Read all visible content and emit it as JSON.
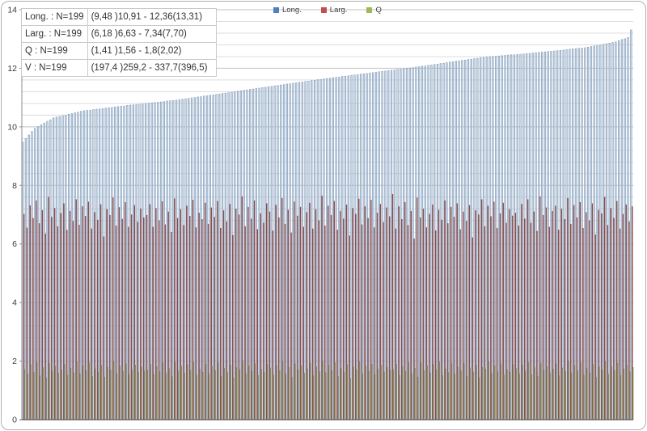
{
  "stats_table": {
    "rows": [
      {
        "name": "Long. : N=199",
        "range": "(9,48 )10,91 - 12,36(13,31)"
      },
      {
        "name": "Larg. : N=199",
        "range": "(6,18 )6,63 - 7,34(7,70)"
      },
      {
        "name": "Q : N=199",
        "range": "(1,41 )1,56 - 1,8(2,02)"
      },
      {
        "name": "V : N=199",
        "range": "(197,4 )259,2 - 337,7(396,5)"
      }
    ]
  },
  "legend": {
    "items": [
      {
        "label": "Long.",
        "color": "#4F81BD"
      },
      {
        "label": "Larg.",
        "color": "#C0504D"
      },
      {
        "label": "Q",
        "color": "#9BBB59"
      }
    ]
  },
  "colors": {
    "grid_minor": "#dcdcdc",
    "grid_major": "#c2c2c2",
    "y_axis": "#8c8c8c",
    "x_axis": "#595959",
    "tick_text": "#3a3a3a",
    "frame_border": "#b0b0b0"
  },
  "chart_data": {
    "type": "bar",
    "title": "",
    "xlabel": "",
    "ylabel": "",
    "n_categories": 199,
    "ylim": [
      0,
      14
    ],
    "ytick_interval": 2,
    "minor_grid_interval": 0.4,
    "grid": true,
    "legend_position": "top",
    "yticks": [
      "0",
      "2",
      "4",
      "6",
      "8",
      "10",
      "12",
      "14"
    ],
    "series": [
      {
        "name": "Long.",
        "sorted": "ascending",
        "summary": "min 9.48, Q1 10.91, Q3 12.36, max 13.31, N=199",
        "fill": "#ccd9e8",
        "edge": "#7d98b6",
        "values": [
          9.48,
          9.6,
          9.72,
          9.84,
          9.95,
          10.01,
          10.07,
          10.13,
          10.19,
          10.24,
          10.3,
          10.33,
          10.35,
          10.38,
          10.4,
          10.43,
          10.45,
          10.48,
          10.5,
          10.53,
          10.55,
          10.56,
          10.57,
          10.59,
          10.6,
          10.61,
          10.62,
          10.64,
          10.65,
          10.66,
          10.68,
          10.69,
          10.7,
          10.71,
          10.73,
          10.74,
          10.75,
          10.76,
          10.77,
          10.78,
          10.8,
          10.81,
          10.82,
          10.83,
          10.84,
          10.85,
          10.86,
          10.88,
          10.89,
          10.9,
          10.91,
          10.93,
          10.94,
          10.96,
          10.97,
          10.99,
          11.0,
          11.02,
          11.03,
          11.05,
          11.06,
          11.08,
          11.09,
          11.11,
          11.12,
          11.14,
          11.15,
          11.17,
          11.18,
          11.2,
          11.22,
          11.23,
          11.25,
          11.26,
          11.28,
          11.29,
          11.31,
          11.32,
          11.34,
          11.35,
          11.37,
          11.38,
          11.4,
          11.41,
          11.43,
          11.44,
          11.46,
          11.47,
          11.49,
          11.5,
          11.52,
          11.53,
          11.55,
          11.56,
          11.58,
          11.59,
          11.61,
          11.62,
          11.64,
          11.65,
          11.66,
          11.68,
          11.69,
          11.7,
          11.72,
          11.73,
          11.74,
          11.76,
          11.77,
          11.78,
          11.8,
          11.81,
          11.82,
          11.84,
          11.85,
          11.86,
          11.88,
          11.89,
          11.9,
          11.92,
          11.93,
          11.94,
          11.96,
          11.97,
          11.98,
          12.0,
          12.01,
          12.02,
          12.04,
          12.05,
          12.07,
          12.08,
          12.1,
          12.11,
          12.13,
          12.14,
          12.16,
          12.17,
          12.19,
          12.21,
          12.22,
          12.24,
          12.25,
          12.27,
          12.28,
          12.3,
          12.31,
          12.33,
          12.34,
          12.36,
          12.37,
          12.38,
          12.39,
          12.4,
          12.41,
          12.42,
          12.43,
          12.44,
          12.45,
          12.46,
          12.46,
          12.47,
          12.48,
          12.49,
          12.5,
          12.51,
          12.52,
          12.53,
          12.54,
          12.55,
          12.56,
          12.57,
          12.58,
          12.59,
          12.6,
          12.61,
          12.62,
          12.64,
          12.65,
          12.66,
          12.67,
          12.68,
          12.69,
          12.7,
          12.72,
          12.74,
          12.76,
          12.78,
          12.8,
          12.82,
          12.84,
          12.86,
          12.88,
          12.9,
          12.94,
          12.98,
          13.01,
          13.05,
          13.31
        ]
      },
      {
        "name": "Larg.",
        "sorted": "none",
        "summary": "min 6.18, Q1 6.63, Q3 7.34, max 7.70, N=199",
        "fill": "#9c4f4c",
        "edge": "#7a3a38",
        "values": [
          7.02,
          6.55,
          7.31,
          6.88,
          7.48,
          6.7,
          7.15,
          6.35,
          7.6,
          6.92,
          7.22,
          6.6,
          7.05,
          7.38,
          6.48,
          7.12,
          6.78,
          7.52,
          6.65,
          7.28,
          6.95,
          7.44,
          6.52,
          7.08,
          6.82,
          7.35,
          6.25,
          7.18,
          6.98,
          7.58,
          6.62,
          7.25,
          6.85,
          7.42,
          6.58,
          7.0,
          7.32,
          6.75,
          7.2,
          6.9,
          6.98,
          7.35,
          6.58,
          7.22,
          6.8,
          7.45,
          6.66,
          7.1,
          6.4,
          7.55,
          6.88,
          7.18,
          6.64,
          7.3,
          6.95,
          7.5,
          6.56,
          7.06,
          6.84,
          7.4,
          6.68,
          7.24,
          6.92,
          7.46,
          6.54,
          7.14,
          6.76,
          7.36,
          6.3,
          7.2,
          7.0,
          7.62,
          6.6,
          7.26,
          6.86,
          7.48,
          6.5,
          7.04,
          6.72,
          7.38,
          7.1,
          6.45,
          7.33,
          6.9,
          7.56,
          6.68,
          7.16,
          6.38,
          7.44,
          6.96,
          7.26,
          6.58,
          7.08,
          7.4,
          6.52,
          7.18,
          6.8,
          7.64,
          6.62,
          7.3,
          6.98,
          7.46,
          6.48,
          7.12,
          6.86,
          7.34,
          6.28,
          7.22,
          7.02,
          7.54,
          6.66,
          7.28,
          6.88,
          7.5,
          6.56,
          7.06,
          7.36,
          6.74,
          7.24,
          6.94,
          7.7,
          6.52,
          7.28,
          6.84,
          7.42,
          6.64,
          7.12,
          6.18,
          7.58,
          6.9,
          7.2,
          6.56,
          7.02,
          7.34,
          6.46,
          7.16,
          6.82,
          7.48,
          6.7,
          7.26,
          6.92,
          7.38,
          6.5,
          7.1,
          6.78,
          7.32,
          6.22,
          7.14,
          7.0,
          7.52,
          6.6,
          7.3,
          6.94,
          7.44,
          6.54,
          7.04,
          7.4,
          6.72,
          7.18,
          6.96,
          7.06,
          6.62,
          7.36,
          6.86,
          7.52,
          6.72,
          7.1,
          6.44,
          7.62,
          6.98,
          7.24,
          6.58,
          7.12,
          7.3,
          6.48,
          7.2,
          6.84,
          7.56,
          6.68,
          7.32,
          6.9,
          7.42,
          6.54,
          7.08,
          6.8,
          7.38,
          6.32,
          7.16,
          7.04,
          7.6,
          6.64,
          7.22,
          6.88,
          7.46,
          6.52,
          7.02,
          7.34,
          6.76,
          7.28
        ]
      },
      {
        "name": "Q",
        "sorted": "none",
        "summary": "min 1.41, Q1 1.56, Q3 1.80, max 2.02, N=199",
        "fill": "#a39e68",
        "edge": "#7d7a45",
        "values": [
          1.72,
          1.55,
          1.88,
          1.62,
          1.95,
          1.5,
          1.78,
          1.44,
          1.92,
          1.66,
          1.82,
          1.58,
          1.7,
          1.9,
          1.52,
          1.76,
          1.6,
          1.98,
          1.56,
          1.84,
          1.68,
          1.94,
          1.48,
          1.74,
          1.63,
          1.86,
          1.46,
          1.79,
          1.69,
          2.0,
          1.57,
          1.83,
          1.65,
          1.91,
          1.53,
          1.71,
          1.87,
          1.61,
          1.8,
          1.67,
          1.7,
          1.89,
          1.54,
          1.81,
          1.64,
          1.93,
          1.58,
          1.75,
          1.47,
          1.97,
          1.66,
          1.83,
          1.59,
          1.88,
          1.69,
          1.96,
          1.52,
          1.73,
          1.62,
          1.9,
          1.56,
          1.82,
          1.68,
          1.94,
          1.49,
          1.76,
          1.61,
          1.87,
          1.43,
          1.78,
          1.71,
          2.02,
          1.57,
          1.84,
          1.65,
          1.92,
          1.51,
          1.72,
          1.63,
          1.89,
          1.77,
          1.53,
          1.85,
          1.67,
          1.99,
          1.55,
          1.79,
          1.45,
          1.91,
          1.7,
          1.84,
          1.58,
          1.74,
          1.93,
          1.5,
          1.8,
          1.64,
          2.01,
          1.6,
          1.86,
          1.68,
          1.95,
          1.48,
          1.75,
          1.62,
          1.88,
          1.41,
          1.81,
          1.71,
          1.98,
          1.56,
          1.83,
          1.66,
          1.9,
          1.54,
          1.73,
          1.87,
          1.63,
          1.78,
          1.69,
          1.72,
          1.9,
          1.52,
          1.82,
          1.65,
          1.96,
          1.57,
          1.76,
          1.46,
          1.94,
          1.68,
          1.85,
          1.6,
          1.89,
          1.7,
          1.97,
          1.51,
          1.74,
          1.61,
          1.92,
          1.55,
          1.8,
          1.67,
          1.93,
          1.47,
          1.77,
          1.63,
          1.86,
          1.44,
          1.79,
          1.73,
          1.99,
          1.58,
          1.84,
          1.64,
          1.91,
          1.53,
          1.71,
          1.62,
          1.88,
          1.75,
          1.56,
          1.87,
          1.66,
          1.95,
          1.54,
          1.78,
          1.49,
          1.92,
          1.69,
          1.81,
          1.59,
          1.73,
          1.91,
          1.5,
          1.77,
          1.65,
          2.0,
          1.58,
          1.85,
          1.67,
          1.96,
          1.52,
          1.76,
          1.6,
          1.89,
          1.45,
          1.8,
          1.7,
          1.98,
          1.55,
          1.82,
          1.68,
          1.93,
          1.51,
          1.74,
          1.86,
          1.64,
          1.79
        ]
      }
    ]
  }
}
